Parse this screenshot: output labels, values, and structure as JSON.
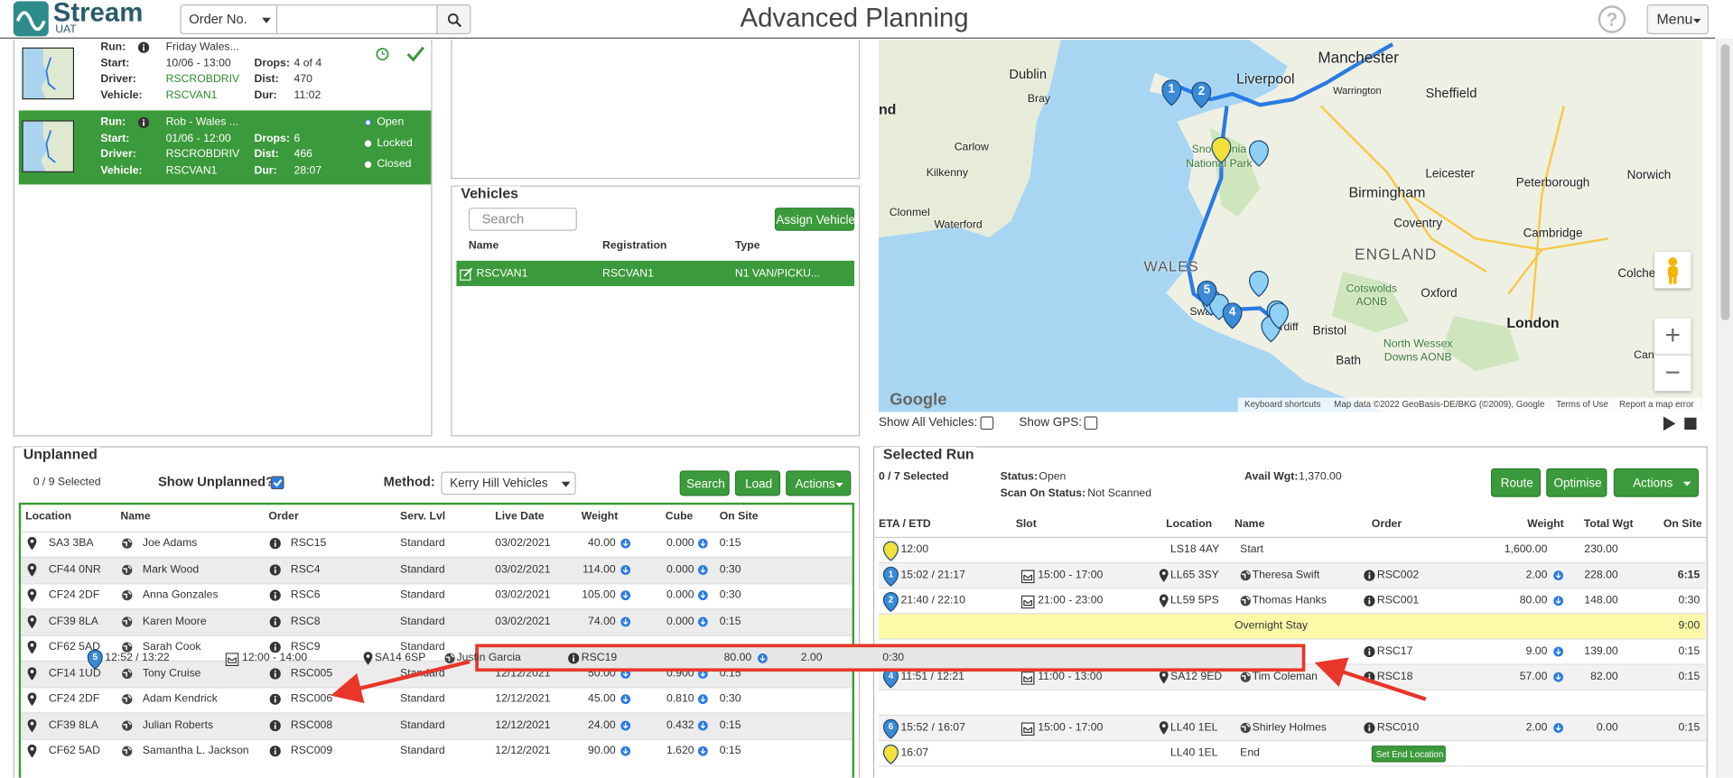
{
  "header": {
    "logo": "Stream",
    "logo_sub": "UAT",
    "search_type": "Order No.",
    "title": "Advanced Planning",
    "help": "?",
    "menu": "Menu"
  },
  "runs": {
    "labels": {
      "run": "Run:",
      "start": "Start:",
      "driver": "Driver:",
      "vehicle": "Vehicle:",
      "drops": "Drops:",
      "dist": "Dist:",
      "dur": "Dur:"
    },
    "items": [
      {
        "run": "Friday Wales...",
        "start": "10/06 - 13:00",
        "driver": "RSCROBDRIV",
        "vehicle": "RSCVAN1",
        "drops": "4 of 4",
        "dist": "470",
        "dur": "11:02"
      },
      {
        "run": "Rob - Wales ...",
        "start": "01/06 - 12:00",
        "driver": "RSCROBDRIV",
        "vehicle": "RSCVAN1",
        "drops": "6",
        "dist": "466",
        "dur": "28:07"
      }
    ],
    "status_options": [
      "Open",
      "Locked",
      "Closed"
    ]
  },
  "vehicles": {
    "title": "Vehicles",
    "search": "Search",
    "button": "Assign Vehicle",
    "columns": [
      "Name",
      "Registration",
      "Type"
    ],
    "rows": [
      [
        "RSCVAN1",
        "RSCVAN1",
        "N1 VAN/PICKU..."
      ]
    ]
  },
  "map": {
    "labels": [
      "nd",
      "Dublin",
      "Bray",
      "Carlow",
      "Kilkenny",
      "Clonmel",
      "Waterford",
      "Manchester",
      "Liverpool",
      "Warrington",
      "Sheffield",
      "Snowdonia",
      "National Park",
      "Leicester",
      "Birmingham",
      "Peterborough",
      "Norwich",
      "Coventry",
      "Cambridge",
      "WALES",
      "ENGLAND",
      "Colchester",
      "Oxford",
      "Cotswolds",
      "AONB",
      "Bristol",
      "London",
      "Bath",
      "North Wessex",
      "Downs AONB",
      "Canterbury",
      "Swansea",
      "Cardiff"
    ],
    "pins": [
      "1",
      "2",
      "5",
      "4"
    ],
    "logo": "Google",
    "footer": [
      "Keyboard shortcuts",
      "Map data ©2022 GeoBasis-DE/BKG (©2009), Google",
      "Terms of Use",
      "Report a map error"
    ],
    "zoom_in": "+",
    "zoom_out": "−",
    "show_all_vehicles": "Show All Vehicles:",
    "show_gps": "Show GPS:"
  },
  "unplanned": {
    "title": "Unplanned",
    "selected": "0 / 9 Selected",
    "show_unplanned": "Show Unplanned?",
    "method_label": "Method:",
    "method": "Kerry Hill Vehicles",
    "buttons": [
      "Search",
      "Load",
      "Actions"
    ],
    "columns": [
      "Location",
      "Name",
      "Order",
      "Serv. Lvl",
      "Live Date",
      "Weight",
      "Cube",
      "On Site"
    ],
    "rows": [
      {
        "location": "SA3 3BA",
        "name": "Joe Adams",
        "order": "RSC15",
        "service": "Standard",
        "date": "03/02/2021",
        "weight": "40.00",
        "cube": "0.000",
        "on_site": "0:15"
      },
      {
        "location": "CF44 0NR",
        "name": "Mark Wood",
        "order": "RSC4",
        "service": "Standard",
        "date": "03/02/2021",
        "weight": "114.00",
        "cube": "0.000",
        "on_site": "0:30"
      },
      {
        "location": "CF24 2DF",
        "name": "Anna Gonzales",
        "order": "RSC6",
        "service": "Standard",
        "date": "03/02/2021",
        "weight": "105.00",
        "cube": "0.000",
        "on_site": "0:30"
      },
      {
        "location": "CF39 8LA",
        "name": "Karen Moore",
        "order": "RSC8",
        "service": "Standard",
        "date": "03/02/2021",
        "weight": "74.00",
        "cube": "0.000",
        "on_site": "0:15"
      },
      {
        "location": "CF62 5AD",
        "name": "Sarah Cook",
        "order": "RSC9",
        "service": "Standard",
        "date": null,
        "weight": null,
        "cube": null,
        "on_site": null
      },
      {
        "location": "CF14 1UD",
        "name": "Tony Cruise",
        "order": "RSC005",
        "service": "Standard",
        "date": "12/12/2021",
        "weight": "50.00",
        "cube": "0.900",
        "on_site": "0:15"
      },
      {
        "location": "CF24 2DF",
        "name": "Adam Kendrick",
        "order": "RSC006",
        "service": "Standard",
        "date": "12/12/2021",
        "weight": "45.00",
        "cube": "0.810",
        "on_site": "0:30"
      },
      {
        "location": "CF39 8LA",
        "name": "Julian Roberts",
        "order": "RSC008",
        "service": "Standard",
        "date": "12/12/2021",
        "weight": "24.00",
        "cube": "0.432",
        "on_site": "0:15"
      },
      {
        "location": "CF62 5AD",
        "name": "Samantha L. Jackson",
        "order": "RSC009",
        "service": "Standard",
        "date": "12/12/2021",
        "weight": "90.00",
        "cube": "1.620",
        "on_site": "0:15"
      }
    ]
  },
  "selected_run": {
    "title": "Selected Run",
    "selected": "0 / 7 Selected",
    "status_label": "Status:",
    "status": "Open",
    "scan_label": "Scan On Status:",
    "scan": "Not Scanned",
    "avail_label": "Avail Wgt:",
    "avail": "1,370.00",
    "buttons": [
      "Route",
      "Optimise",
      "Actions"
    ],
    "columns": [
      "ETA / ETD",
      "Slot",
      "Location",
      "Name",
      "Order",
      "Weight",
      "Total Wgt",
      "On Site"
    ],
    "rows": [
      {
        "stop": null,
        "eta": "12:00",
        "slot": null,
        "location": "LS18 4AY",
        "name": "Start",
        "order": null,
        "weight": "1,600.00",
        "total": "230.00",
        "on_site": null
      },
      {
        "stop": "1",
        "eta": "15:02 / 21:17",
        "slot": "15:00 - 17:00",
        "location": "LL65 3SY",
        "name": "Theresa Swift",
        "order": "RSC002",
        "weight": "2.00",
        "total": "228.00",
        "on_site": "6:15"
      },
      {
        "stop": "2",
        "eta": "21:40 / 22:10",
        "slot": "21:00 - 23:00",
        "location": "LL59 5PS",
        "name": "Thomas Hanks",
        "order": "RSC001",
        "weight": "80.00",
        "total": "148.00",
        "on_site": "0:30"
      },
      {
        "stop": null,
        "eta": null,
        "slot": null,
        "location": null,
        "name": "Overnight Stay",
        "order": null,
        "weight": null,
        "total": null,
        "on_site": "9:00"
      },
      {
        "stop": null,
        "eta": null,
        "slot": null,
        "location": null,
        "name": null,
        "order": "RSC17",
        "weight": "9.00",
        "total": "139.00",
        "on_site": "0:15"
      },
      {
        "stop": "4",
        "eta": "11:51 / 12:21",
        "slot": "11:00 - 13:00",
        "location": "SA12 9ED",
        "name": "Tim Coleman",
        "order": "RSC18",
        "weight": "57.00",
        "total": "82.00",
        "on_site": "0:15"
      },
      null,
      {
        "stop": "6",
        "eta": "15:52 / 16:07",
        "slot": "15:00 - 17:00",
        "location": "LL40 1EL",
        "name": "Shirley Holmes",
        "order": "RSC010",
        "weight": "2.00",
        "total": "0.00",
        "on_site": "0:15"
      },
      {
        "stop": null,
        "eta": "16:07",
        "slot": null,
        "location": "LL40 1EL",
        "name": "End",
        "order": null,
        "weight": null,
        "total": null,
        "on_site": null,
        "action": "Set End Location"
      }
    ]
  },
  "drag_row": {
    "stop": "5",
    "eta": "12:52 / 13:22",
    "slot": "12:00 - 14:00",
    "location": "SA14 6SP",
    "name": "Justin Garcia",
    "order": "RSC19",
    "weight": "80.00",
    "total": "2.00",
    "on_site": "0:30"
  }
}
